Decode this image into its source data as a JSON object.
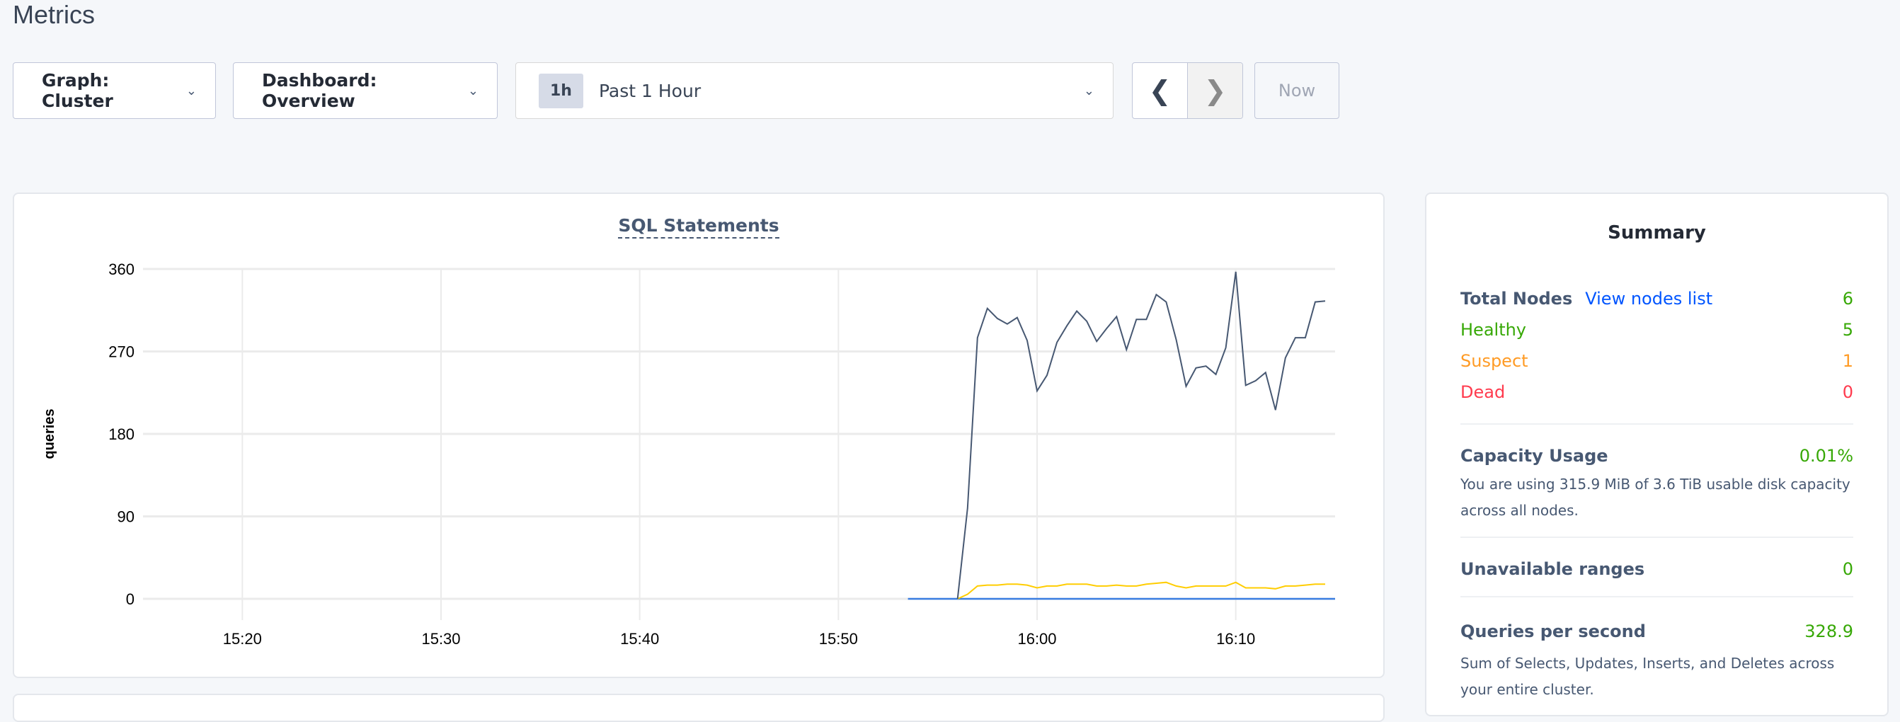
{
  "page_title": "Metrics",
  "toolbar": {
    "graph_dropdown": "Graph: Cluster",
    "dashboard_dropdown": "Dashboard: Overview",
    "time_badge": "1h",
    "time_range": "Past 1 Hour",
    "prev_icon": "chevron-left",
    "next_icon": "chevron-right",
    "now_label": "Now"
  },
  "chart_data": {
    "type": "line",
    "title": "SQL Statements",
    "ylabel": "queries",
    "xlabel": "",
    "ylim": [
      0,
      360
    ],
    "xlim": [
      "15:15",
      "16:15"
    ],
    "yticks": [
      "0",
      "90",
      "180",
      "270",
      "360"
    ],
    "xticks": [
      "15:20",
      "15:30",
      "15:40",
      "15:50",
      "16:00",
      "16:10"
    ],
    "grid": true,
    "series": [
      {
        "color": "#475872",
        "start": "15:56:00",
        "interval_seconds": 30,
        "values": [
          0,
          99,
          285,
          317,
          306,
          300,
          307,
          282,
          227,
          244,
          280,
          298,
          314,
          303,
          281,
          295,
          308,
          272,
          305,
          305,
          332,
          324,
          283,
          232,
          252,
          254,
          245,
          274,
          357,
          233,
          238,
          247,
          206,
          263,
          285,
          285,
          324,
          325
        ]
      },
      {
        "color": "#ffcd02",
        "start": "15:56:00",
        "interval_seconds": 30,
        "values": [
          0,
          5,
          14,
          15,
          15,
          16,
          16,
          15,
          12,
          14,
          14,
          16,
          16,
          16,
          14,
          14,
          15,
          14,
          14,
          16,
          17,
          18,
          14,
          12,
          14,
          14,
          14,
          14,
          18,
          12,
          12,
          12,
          11,
          14,
          14,
          15,
          16,
          16
        ]
      },
      {
        "color": "#3a7de1",
        "start": "15:53:30",
        "interval_seconds": 30,
        "values": [
          0,
          0,
          0,
          0,
          0,
          0,
          0,
          0,
          0,
          0,
          0,
          0,
          0,
          0,
          0,
          0,
          0,
          0,
          0,
          0,
          0,
          0,
          0,
          0,
          0,
          0,
          0,
          0,
          0,
          0,
          0,
          0,
          0,
          0,
          0,
          0,
          0,
          0,
          0,
          0,
          0,
          0,
          0,
          0
        ]
      }
    ]
  },
  "summary": {
    "title": "Summary",
    "total_nodes_label": "Total Nodes",
    "view_nodes_link": "View nodes list",
    "total_nodes": "6",
    "healthy_label": "Healthy",
    "healthy": "5",
    "suspect_label": "Suspect",
    "suspect": "1",
    "dead_label": "Dead",
    "dead": "0",
    "capacity_label": "Capacity Usage",
    "capacity": "0.01%",
    "capacity_desc": "You are using 315.9 MiB of 3.6 TiB usable disk capacity across all nodes.",
    "unavailable_label": "Unavailable ranges",
    "unavailable": "0",
    "qps_label": "Queries per second",
    "qps": "328.9",
    "qps_desc": "Sum of Selects, Updates, Inserts, and Deletes across your entire cluster."
  },
  "colors": {
    "green": "#37a806",
    "orange": "#ff9b25",
    "red": "#ff3b4e",
    "link": "#0055ff"
  }
}
